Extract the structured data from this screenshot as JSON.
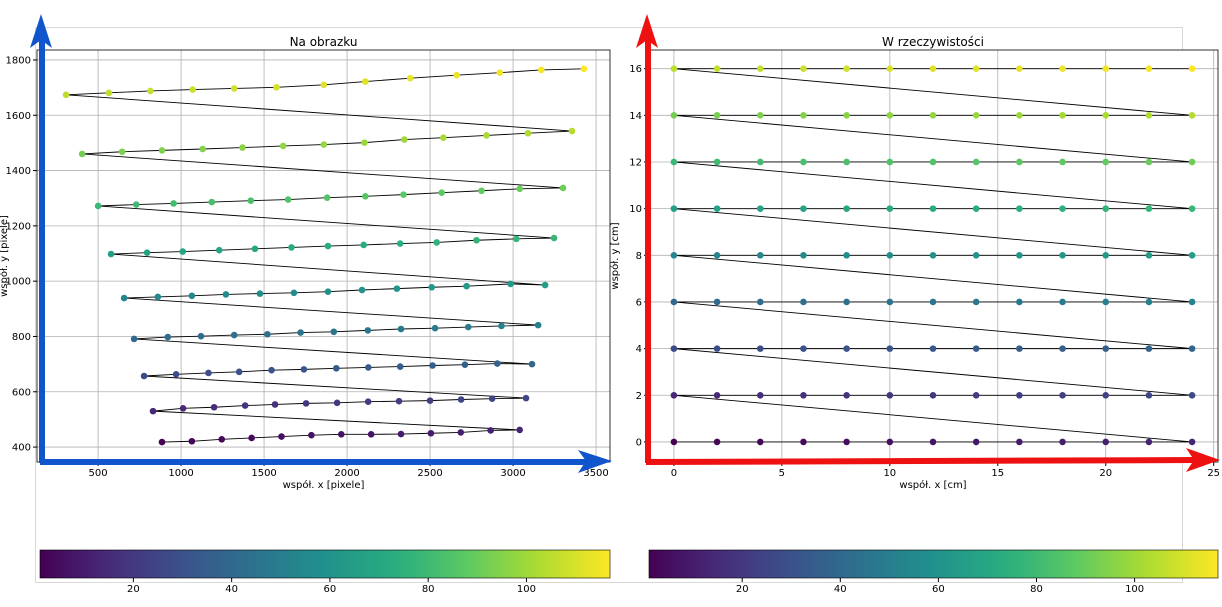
{
  "chart_data": [
    {
      "type": "scatter",
      "title": "Na obrazku",
      "x_label": "współ. x [pixele]",
      "y_label": "współ. y [pixele]",
      "connect": true,
      "line_color": "#000000",
      "colormap": "viridis",
      "grid": true,
      "xlim": [
        132,
        3584
      ],
      "ylim": [
        346,
        1836
      ],
      "xticks": [
        500,
        1000,
        1500,
        2000,
        2500,
        3000,
        3500
      ],
      "yticks": [
        400,
        600,
        800,
        1000,
        1200,
        1400,
        1600,
        1800
      ],
      "clim": [
        1,
        117
      ],
      "cticks": [
        20,
        40,
        60,
        80,
        100
      ],
      "x": [
        885,
        1065,
        1245,
        1425,
        1605,
        1785,
        1965,
        2145,
        2325,
        2505,
        2685,
        2865,
        3040,
        831,
        1012,
        1199,
        1386,
        1566,
        1753,
        1940,
        2127,
        2313,
        2500,
        2687,
        2874,
        3078,
        777,
        970,
        1165,
        1350,
        1545,
        1740,
        1935,
        2128,
        2320,
        2515,
        2710,
        2905,
        3114,
        717,
        920,
        1120,
        1320,
        1520,
        1720,
        1920,
        2125,
        2325,
        2530,
        2730,
        2930,
        3151,
        657,
        860,
        1065,
        1270,
        1475,
        1680,
        1885,
        2090,
        2300,
        2510,
        2720,
        2985,
        3193,
        578,
        795,
        1010,
        1230,
        1445,
        1665,
        1885,
        2100,
        2320,
        2540,
        2780,
        3020,
        3247,
        500,
        730,
        955,
        1185,
        1420,
        1645,
        1880,
        2110,
        2340,
        2570,
        2810,
        3040,
        3301,
        404,
        645,
        885,
        1130,
        1370,
        1615,
        1860,
        2105,
        2345,
        2580,
        2840,
        3090,
        3355,
        307,
        565,
        815,
        1070,
        1320,
        1575,
        1860,
        2110,
        2380,
        2660,
        2920,
        3170,
        3427
      ],
      "y": [
        418,
        421,
        428,
        433,
        438,
        443,
        446,
        446,
        447,
        450,
        453,
        460,
        462,
        530,
        540,
        544,
        550,
        554,
        558,
        560,
        564,
        566,
        568,
        572,
        575,
        577,
        657,
        663,
        668,
        672,
        678,
        681,
        685,
        688,
        691,
        695,
        698,
        702,
        700,
        791,
        798,
        801,
        805,
        808,
        814,
        817,
        822,
        827,
        830,
        834,
        838,
        841,
        939,
        943,
        947,
        952,
        955,
        958,
        962,
        968,
        973,
        978,
        982,
        990,
        986,
        1098,
        1103,
        1107,
        1112,
        1117,
        1122,
        1127,
        1131,
        1136,
        1140,
        1148,
        1153,
        1156,
        1272,
        1277,
        1281,
        1286,
        1291,
        1295,
        1302,
        1307,
        1313,
        1320,
        1327,
        1334,
        1337,
        1460,
        1468,
        1473,
        1478,
        1483,
        1489,
        1494,
        1501,
        1512,
        1519,
        1527,
        1535,
        1543,
        1674,
        1681,
        1688,
        1693,
        1697,
        1701,
        1710,
        1722,
        1734,
        1745,
        1754,
        1764,
        1768
      ],
      "c": [
        1,
        2,
        3,
        4,
        5,
        6,
        7,
        8,
        9,
        10,
        11,
        12,
        13,
        14,
        15,
        16,
        17,
        18,
        19,
        20,
        21,
        22,
        23,
        24,
        25,
        26,
        27,
        28,
        29,
        30,
        31,
        32,
        33,
        34,
        35,
        36,
        37,
        38,
        39,
        40,
        41,
        42,
        43,
        44,
        45,
        46,
        47,
        48,
        49,
        50,
        51,
        52,
        53,
        54,
        55,
        56,
        57,
        58,
        59,
        60,
        61,
        62,
        63,
        64,
        65,
        66,
        67,
        68,
        69,
        70,
        71,
        72,
        73,
        74,
        75,
        76,
        77,
        78,
        79,
        80,
        81,
        82,
        83,
        84,
        85,
        86,
        87,
        88,
        89,
        90,
        91,
        92,
        93,
        94,
        95,
        96,
        97,
        98,
        99,
        100,
        101,
        102,
        103,
        104,
        105,
        106,
        107,
        108,
        109,
        110,
        111,
        112,
        113,
        114,
        115,
        116,
        117
      ]
    },
    {
      "type": "scatter",
      "title": "W rzeczywistości",
      "x_label": "współ. x [cm]",
      "y_label": "współ. y [cm]",
      "connect": true,
      "line_color": "#000000",
      "colormap": "viridis",
      "grid": true,
      "xlim": [
        -1.2,
        25.2
      ],
      "ylim": [
        -0.86,
        16.8
      ],
      "xticks": [
        0,
        5,
        10,
        15,
        20,
        25
      ],
      "yticks": [
        0,
        2,
        4,
        6,
        8,
        10,
        12,
        14,
        16
      ],
      "clim": [
        1,
        117
      ],
      "cticks": [
        20,
        40,
        60,
        80,
        100
      ],
      "x": [
        0,
        2,
        4,
        6,
        8,
        10,
        12,
        14,
        16,
        18,
        20,
        22,
        24,
        0,
        2,
        4,
        6,
        8,
        10,
        12,
        14,
        16,
        18,
        20,
        22,
        24,
        0,
        2,
        4,
        6,
        8,
        10,
        12,
        14,
        16,
        18,
        20,
        22,
        24,
        0,
        2,
        4,
        6,
        8,
        10,
        12,
        14,
        16,
        18,
        20,
        22,
        24,
        0,
        2,
        4,
        6,
        8,
        10,
        12,
        14,
        16,
        18,
        20,
        22,
        24,
        0,
        2,
        4,
        6,
        8,
        10,
        12,
        14,
        16,
        18,
        20,
        22,
        24,
        0,
        2,
        4,
        6,
        8,
        10,
        12,
        14,
        16,
        18,
        20,
        22,
        24,
        0,
        2,
        4,
        6,
        8,
        10,
        12,
        14,
        16,
        18,
        20,
        22,
        24,
        0,
        2,
        4,
        6,
        8,
        10,
        12,
        14,
        16,
        18,
        20,
        22,
        24
      ],
      "y": [
        0,
        0,
        0,
        0,
        0,
        0,
        0,
        0,
        0,
        0,
        0,
        0,
        0,
        2,
        2,
        2,
        2,
        2,
        2,
        2,
        2,
        2,
        2,
        2,
        2,
        2,
        4,
        4,
        4,
        4,
        4,
        4,
        4,
        4,
        4,
        4,
        4,
        4,
        4,
        6,
        6,
        6,
        6,
        6,
        6,
        6,
        6,
        6,
        6,
        6,
        6,
        6,
        8,
        8,
        8,
        8,
        8,
        8,
        8,
        8,
        8,
        8,
        8,
        8,
        8,
        10,
        10,
        10,
        10,
        10,
        10,
        10,
        10,
        10,
        10,
        10,
        10,
        10,
        12,
        12,
        12,
        12,
        12,
        12,
        12,
        12,
        12,
        12,
        12,
        12,
        12,
        14,
        14,
        14,
        14,
        14,
        14,
        14,
        14,
        14,
        14,
        14,
        14,
        14,
        16,
        16,
        16,
        16,
        16,
        16,
        16,
        16,
        16,
        16,
        16,
        16,
        16
      ],
      "c": [
        1,
        2,
        3,
        4,
        5,
        6,
        7,
        8,
        9,
        10,
        11,
        12,
        13,
        14,
        15,
        16,
        17,
        18,
        19,
        20,
        21,
        22,
        23,
        24,
        25,
        26,
        27,
        28,
        29,
        30,
        31,
        32,
        33,
        34,
        35,
        36,
        37,
        38,
        39,
        40,
        41,
        42,
        43,
        44,
        45,
        46,
        47,
        48,
        49,
        50,
        51,
        52,
        53,
        54,
        55,
        56,
        57,
        58,
        59,
        60,
        61,
        62,
        63,
        64,
        65,
        66,
        67,
        68,
        69,
        70,
        71,
        72,
        73,
        74,
        75,
        76,
        77,
        78,
        79,
        80,
        81,
        82,
        83,
        84,
        85,
        86,
        87,
        88,
        89,
        90,
        91,
        92,
        93,
        94,
        95,
        96,
        97,
        98,
        99,
        100,
        101,
        102,
        103,
        104,
        105,
        106,
        107,
        108,
        109,
        110,
        111,
        112,
        113,
        114,
        115,
        116,
        117
      ]
    }
  ]
}
